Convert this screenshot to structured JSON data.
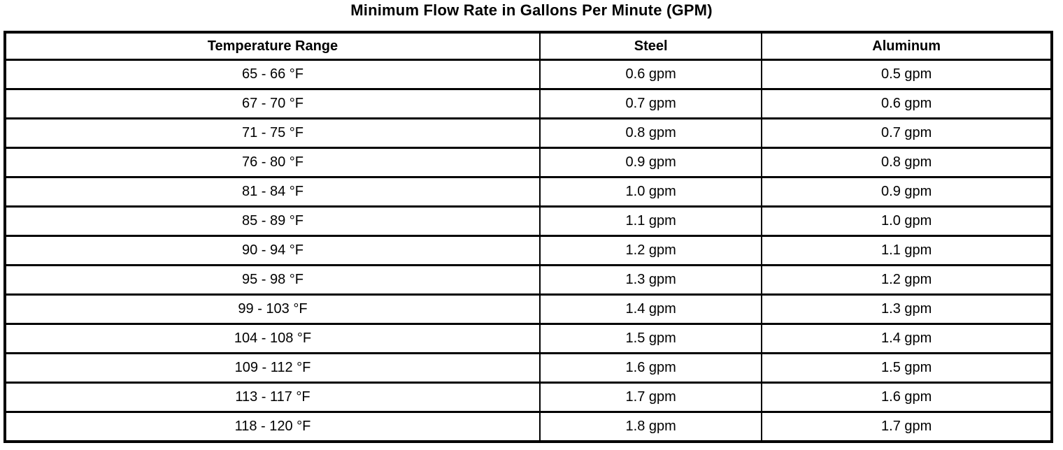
{
  "page": {
    "title": "Minimum Flow Rate in Gallons Per Minute (GPM)"
  },
  "colors": {
    "text": "#000000",
    "border": "#000000",
    "background": "#ffffff"
  },
  "table": {
    "columns": [
      "Temperature Range",
      "Steel",
      "Aluminum"
    ],
    "rows": [
      {
        "temp": "65 - 66 °F",
        "steel": "0.6 gpm",
        "aluminum": "0.5 gpm"
      },
      {
        "temp": "67 - 70 °F",
        "steel": "0.7 gpm",
        "aluminum": "0.6 gpm"
      },
      {
        "temp": "71 - 75 °F",
        "steel": "0.8 gpm",
        "aluminum": "0.7 gpm"
      },
      {
        "temp": "76 - 80 °F",
        "steel": "0.9 gpm",
        "aluminum": "0.8 gpm"
      },
      {
        "temp": "81 - 84 °F",
        "steel": "1.0 gpm",
        "aluminum": "0.9 gpm"
      },
      {
        "temp": "85 - 89 °F",
        "steel": "1.1 gpm",
        "aluminum": "1.0 gpm"
      },
      {
        "temp": "90 - 94 °F",
        "steel": "1.2 gpm",
        "aluminum": "1.1 gpm"
      },
      {
        "temp": "95 - 98 °F",
        "steel": "1.3 gpm",
        "aluminum": "1.2 gpm"
      },
      {
        "temp": "99 - 103 °F",
        "steel": "1.4 gpm",
        "aluminum": "1.3 gpm"
      },
      {
        "temp": "104 - 108 °F",
        "steel": "1.5 gpm",
        "aluminum": "1.4 gpm"
      },
      {
        "temp": "109 - 112 °F",
        "steel": "1.6 gpm",
        "aluminum": "1.5 gpm"
      },
      {
        "temp": "113 - 117 °F",
        "steel": "1.7 gpm",
        "aluminum": "1.6 gpm"
      },
      {
        "temp": "118 - 120 °F",
        "steel": "1.8 gpm",
        "aluminum": "1.7 gpm"
      }
    ]
  },
  "chart_data": {
    "type": "table",
    "title": "Minimum Flow Rate in Gallons Per Minute (GPM)",
    "columns": [
      "Temperature Range",
      "Steel",
      "Aluminum"
    ],
    "categories": [
      "65 - 66 °F",
      "67 - 70 °F",
      "71 - 75 °F",
      "76 - 80 °F",
      "81 - 84 °F",
      "85 - 89 °F",
      "90 - 94 °F",
      "95 - 98 °F",
      "99 - 103 °F",
      "104 - 108 °F",
      "109 - 112 °F",
      "113 - 117 °F",
      "118 - 120 °F"
    ],
    "series": [
      {
        "name": "Steel",
        "unit": "gpm",
        "values": [
          0.6,
          0.7,
          0.8,
          0.9,
          1.0,
          1.1,
          1.2,
          1.3,
          1.4,
          1.5,
          1.6,
          1.7,
          1.8
        ]
      },
      {
        "name": "Aluminum",
        "unit": "gpm",
        "values": [
          0.5,
          0.6,
          0.7,
          0.8,
          0.9,
          1.0,
          1.1,
          1.2,
          1.3,
          1.4,
          1.5,
          1.6,
          1.7
        ]
      }
    ]
  }
}
